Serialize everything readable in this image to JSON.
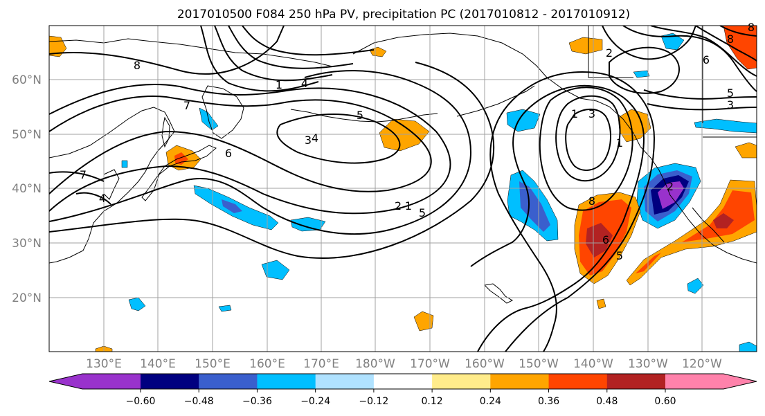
{
  "title": "2017010500 F084 250 hPa PV, precipitation PC (2017010812 - 2017010912)",
  "lat_labels": [
    "60°N",
    "50°N",
    "40°N",
    "30°N",
    "20°N"
  ],
  "lon_labels": [
    "130°E",
    "140°E",
    "150°E",
    "160°E",
    "170°E",
    "180°W",
    "170°W",
    "160°W",
    "150°W",
    "140°W",
    "130°W",
    "120°W"
  ],
  "colorbar": {
    "ticks": [
      "−0.60",
      "−0.48",
      "−0.36",
      "−0.24",
      "−0.12",
      "0.12",
      "0.24",
      "0.36",
      "0.48",
      "0.60"
    ],
    "colors": [
      "#9932cc",
      "#000080",
      "#3a5fcd",
      "#00bfff",
      "#b0e2ff",
      "#ffffff",
      "#ffec8b",
      "#ffa500",
      "#ff4500",
      "#b22222",
      "#ff82ab"
    ]
  },
  "pv_contour_labels": [
    "8",
    "7",
    "6",
    "5",
    "4",
    "3",
    "2",
    "1",
    "5",
    "7",
    "4",
    "3",
    "1",
    "8",
    "6",
    "5",
    "4",
    "1",
    "2",
    "2",
    "8",
    "6",
    "5",
    "3",
    "1",
    "8"
  ]
}
